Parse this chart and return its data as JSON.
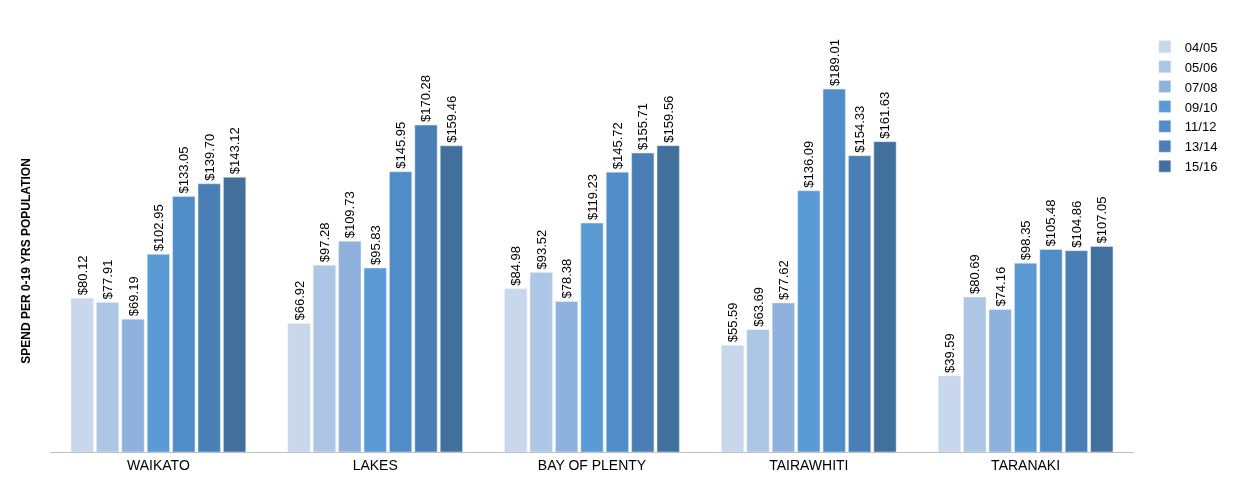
{
  "chart_data": {
    "type": "bar",
    "ylabel": "SPEND PER 0-19 YRS POPULATION",
    "categories": [
      "WAIKATO",
      "LAKES",
      "BAY OF PLENTY",
      "TAIRAWHITI",
      "TARANAKI"
    ],
    "series": [
      {
        "name": "04/05",
        "color": "#c9d7ec",
        "values": [
          80.12,
          66.92,
          84.98,
          55.59,
          39.59
        ],
        "value_labels": [
          "$80.12",
          "$66.92",
          "$84.98",
          "$55.59",
          "$39.59"
        ]
      },
      {
        "name": "05/06",
        "color": "#adc6e6",
        "values": [
          77.91,
          97.28,
          93.52,
          63.69,
          80.69
        ],
        "value_labels": [
          "$77.91",
          "$97.28",
          "$93.52",
          "$63.69",
          "$80.69"
        ]
      },
      {
        "name": "07/08",
        "color": "#8fb1de",
        "values": [
          69.19,
          109.73,
          78.38,
          77.62,
          74.16
        ],
        "value_labels": [
          "$69.19",
          "$109.73",
          "$78.38",
          "$77.62",
          "$74.16"
        ]
      },
      {
        "name": "09/10",
        "color": "#5b9bd5",
        "values": [
          102.95,
          95.83,
          119.23,
          136.09,
          98.35
        ],
        "value_labels": [
          "$102.95",
          "$95.83",
          "$119.23",
          "$136.09",
          "$98.35"
        ]
      },
      {
        "name": "11/12",
        "color": "#508dc8",
        "values": [
          133.05,
          145.95,
          145.72,
          189.01,
          105.48
        ],
        "value_labels": [
          "$133.05",
          "$145.95",
          "$145.72",
          "$189.01",
          "$105.48"
        ]
      },
      {
        "name": "13/14",
        "color": "#4a7fb6",
        "values": [
          139.7,
          170.28,
          155.71,
          154.33,
          104.86
        ],
        "value_labels": [
          "$139.70",
          "$170.28",
          "$155.71",
          "$154.33",
          "$104.86"
        ]
      },
      {
        "name": "15/16",
        "color": "#41709c",
        "values": [
          143.12,
          159.46,
          159.56,
          161.63,
          107.05
        ],
        "value_labels": [
          "$143.12",
          "$159.46",
          "$159.56",
          "$161.63",
          "$107.05"
        ]
      }
    ],
    "legend": "top right"
  }
}
